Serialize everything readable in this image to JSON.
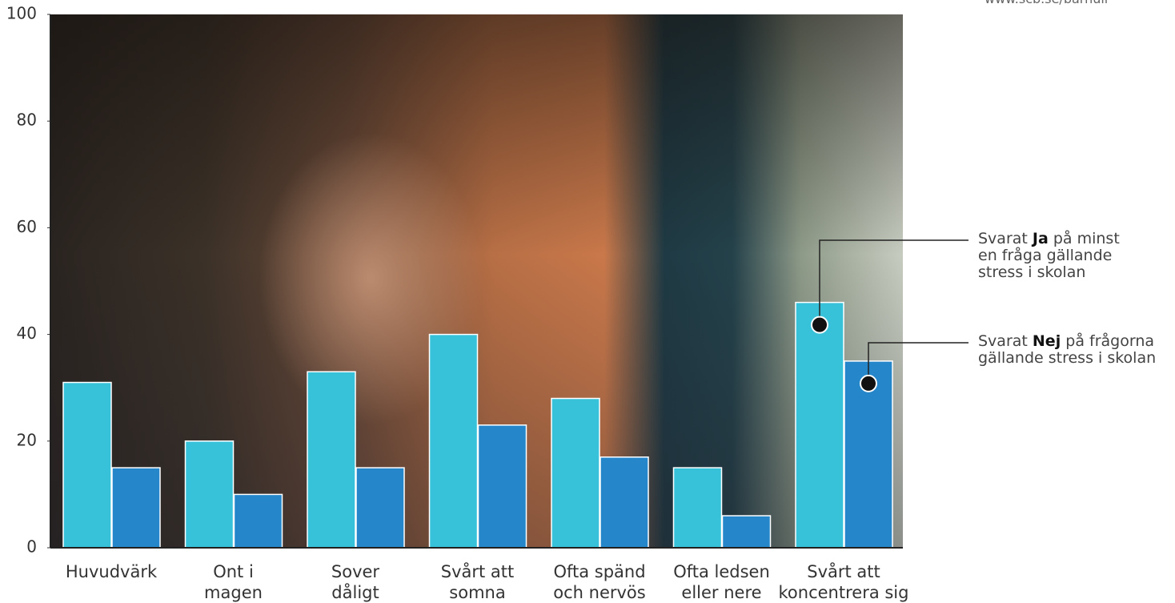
{
  "chart_data": {
    "type": "bar",
    "source": "www.scb.se/barnull",
    "categories": [
      "Huvudvärk",
      "Ont i\nmagen",
      "Sover\ndåligt",
      "Svårt att\nsomna",
      "Ofta spänd\noch nervös",
      "Ofta ledsen\neller nere",
      "Svårt att\nkoncentrera sig"
    ],
    "series": [
      {
        "name": "Ja",
        "color": "#38c2d9",
        "values": [
          31,
          20,
          33,
          40,
          28,
          15,
          46
        ]
      },
      {
        "name": "Nej",
        "color": "#2586c9",
        "values": [
          15,
          10,
          15,
          23,
          17,
          6,
          35
        ]
      }
    ],
    "annotations": [
      {
        "before": "Svarat",
        "after": "på minst en fråga gällande stress i skolan"
      },
      {
        "before": "Svarat",
        "after": "på frågorna gällande stress i skolan"
      }
    ],
    "ylim": [
      0,
      100
    ],
    "yticks": [
      0,
      20,
      40,
      60,
      80,
      100
    ],
    "grid": false
  }
}
